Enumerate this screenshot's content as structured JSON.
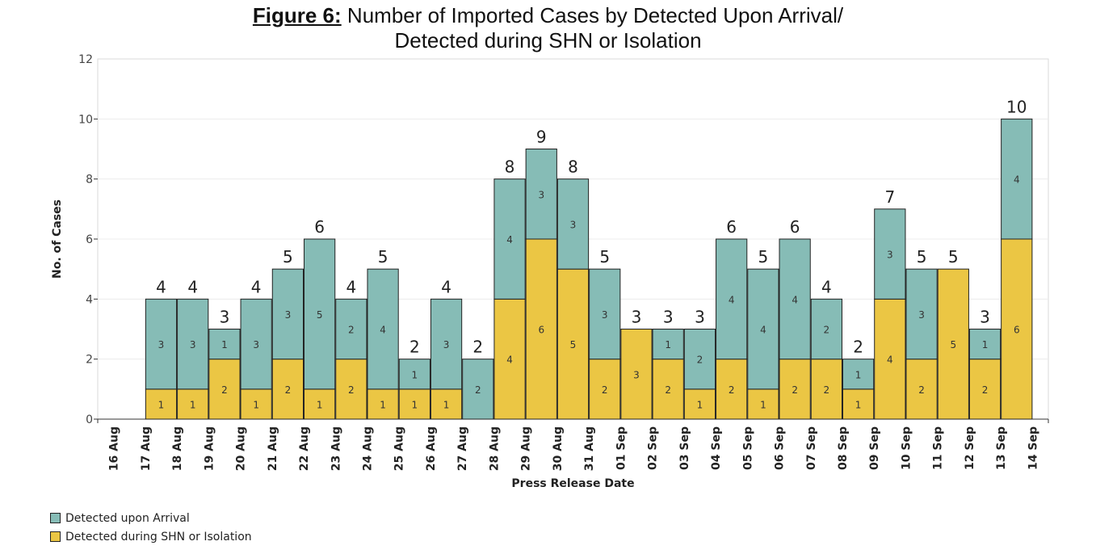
{
  "title": {
    "prefix": "Figure 6:",
    "line1": "Number of Imported Cases by Detected Upon Arrival/",
    "line2": "Detected during SHN or Isolation"
  },
  "colors": {
    "arrival": "#86bcb6",
    "shn": "#ebc644",
    "gridline": "#ececec",
    "axis": "#333333"
  },
  "chart_data": {
    "type": "bar",
    "stacked": true,
    "xlabel": "Press Release Date",
    "ylabel": "No. of Cases",
    "ylim": [
      0,
      12
    ],
    "yticks": [
      0,
      2,
      4,
      6,
      8,
      10,
      12
    ],
    "tick_labels": [
      "16 Aug",
      "17 Aug",
      "18 Aug",
      "19 Aug",
      "20 Aug",
      "21 Aug",
      "22 Aug",
      "23 Aug",
      "24 Aug",
      "25 Aug",
      "26 Aug",
      "27 Aug",
      "28 Aug",
      "29 Aug",
      "30 Aug",
      "31 Aug",
      "01 Sep",
      "02 Sep",
      "03 Sep",
      "04 Sep",
      "05 Sep",
      "06 Sep",
      "07 Sep",
      "08 Sep",
      "09 Sep",
      "10 Sep",
      "11 Sep",
      "12 Sep",
      "13 Sep",
      "14 Sep"
    ],
    "categories": [
      "17 Aug",
      "18 Aug",
      "19 Aug",
      "20 Aug",
      "21 Aug",
      "22 Aug",
      "23 Aug",
      "24 Aug",
      "25 Aug",
      "26 Aug",
      "27 Aug",
      "28 Aug",
      "29 Aug",
      "30 Aug",
      "31 Aug",
      "01 Sep",
      "02 Sep",
      "03 Sep",
      "04 Sep",
      "05 Sep",
      "06 Sep",
      "07 Sep",
      "08 Sep",
      "09 Sep",
      "10 Sep",
      "11 Sep",
      "12 Sep",
      "13 Sep"
    ],
    "series": [
      {
        "name": "Detected during SHN or Isolation",
        "values": [
          1,
          1,
          2,
          1,
          2,
          1,
          2,
          1,
          1,
          1,
          0,
          4,
          6,
          5,
          2,
          3,
          2,
          1,
          2,
          1,
          2,
          2,
          1,
          4,
          2,
          5,
          2,
          6
        ]
      },
      {
        "name": "Detected upon Arrival",
        "values": [
          3,
          3,
          1,
          3,
          3,
          5,
          2,
          4,
          1,
          3,
          2,
          4,
          3,
          3,
          3,
          0,
          1,
          2,
          4,
          4,
          4,
          2,
          1,
          3,
          3,
          0,
          1,
          4
        ]
      }
    ],
    "totals": [
      4,
      4,
      3,
      4,
      5,
      6,
      4,
      5,
      2,
      4,
      2,
      8,
      9,
      8,
      5,
      3,
      3,
      3,
      6,
      5,
      6,
      4,
      2,
      7,
      5,
      5,
      3,
      10
    ],
    "legend": [
      "Detected upon Arrival",
      "Detected during SHN or Isolation"
    ],
    "legend_position": "bottom-left",
    "grid": true
  }
}
